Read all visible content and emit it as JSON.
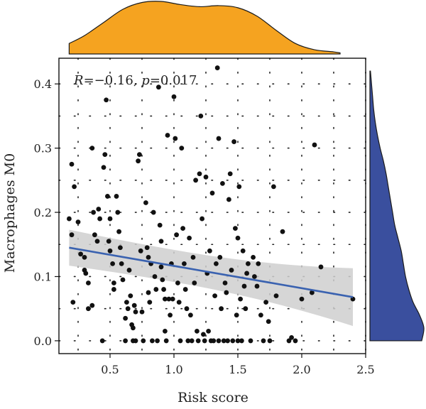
{
  "chart_data": {
    "type": "scatter",
    "xlabel": "Risk score",
    "ylabel": "Macrophages M0",
    "xlim": [
      0.1,
      2.5
    ],
    "ylim": [
      -0.02,
      0.44
    ],
    "x_ticks": [
      0.5,
      1.0,
      1.5,
      2.0,
      2.5
    ],
    "x_tick_labels": [
      "0.5",
      "1.0",
      "1.5",
      "2.0",
      "2.5"
    ],
    "y_ticks": [
      0.0,
      0.1,
      0.2,
      0.3,
      0.4
    ],
    "y_tick_labels": [
      "0.0",
      "0.1",
      "0.2",
      "0.3",
      "0.4"
    ],
    "grid": "dotted",
    "annotation": {
      "r_label": "R",
      "r_value": "−0.16",
      "p_label": "p",
      "p_value": "0.017"
    },
    "regression": {
      "x_start": 0.18,
      "y_start": 0.145,
      "x_end": 2.4,
      "y_end": 0.068,
      "ci_start": [
        0.12,
        0.17
      ],
      "ci_end": [
        0.025,
        0.115
      ]
    },
    "colors": {
      "points": "#111111",
      "fit_line": "#3a62b0",
      "ci_band": "#cfcfcf",
      "top_density": "#f5a320",
      "right_density": "#3a4f9e",
      "density_outline": "#1a1a1a"
    },
    "top_density": {
      "x": [
        0.18,
        0.3,
        0.45,
        0.6,
        0.75,
        0.9,
        1.05,
        1.2,
        1.35,
        1.5,
        1.65,
        1.8,
        1.95,
        2.1,
        2.25,
        2.4
      ],
      "density": [
        0.2,
        0.35,
        0.6,
        0.85,
        0.98,
        1.0,
        0.94,
        0.9,
        0.92,
        0.88,
        0.72,
        0.45,
        0.2,
        0.08,
        0.04,
        0.02
      ]
    },
    "right_density": {
      "y": [
        0.0,
        0.02,
        0.04,
        0.06,
        0.08,
        0.1,
        0.12,
        0.14,
        0.16,
        0.18,
        0.2,
        0.22,
        0.24,
        0.26,
        0.28,
        0.3,
        0.32,
        0.34,
        0.36,
        0.38,
        0.4,
        0.42
      ],
      "density": [
        0.96,
        1.0,
        0.92,
        0.8,
        0.72,
        0.66,
        0.62,
        0.58,
        0.52,
        0.46,
        0.42,
        0.38,
        0.34,
        0.3,
        0.25,
        0.19,
        0.14,
        0.1,
        0.07,
        0.05,
        0.03,
        0.01
      ]
    },
    "points": [
      [
        0.2,
        0.275
      ],
      [
        0.22,
        0.24
      ],
      [
        0.18,
        0.19
      ],
      [
        0.2,
        0.165
      ],
      [
        0.21,
        0.06
      ],
      [
        0.25,
        0.185
      ],
      [
        0.27,
        0.135
      ],
      [
        0.3,
        0.11
      ],
      [
        0.31,
        0.105
      ],
      [
        0.3,
        0.13
      ],
      [
        0.33,
        0.09
      ],
      [
        0.36,
        0.055
      ],
      [
        0.33,
        0.05
      ],
      [
        0.36,
        0.3
      ],
      [
        0.37,
        0.2
      ],
      [
        0.38,
        0.165
      ],
      [
        0.4,
        0.155
      ],
      [
        0.41,
        0.205
      ],
      [
        0.42,
        0.19
      ],
      [
        0.44,
        0.0
      ],
      [
        0.45,
        0.27
      ],
      [
        0.46,
        0.29
      ],
      [
        0.47,
        0.375
      ],
      [
        0.48,
        0.225
      ],
      [
        0.49,
        0.155
      ],
      [
        0.5,
        0.14
      ],
      [
        0.5,
        0.19
      ],
      [
        0.52,
        0.12
      ],
      [
        0.53,
        0.09
      ],
      [
        0.53,
        0.08
      ],
      [
        0.55,
        0.225
      ],
      [
        0.56,
        0.2
      ],
      [
        0.57,
        0.17
      ],
      [
        0.58,
        0.145
      ],
      [
        0.59,
        0.12
      ],
      [
        0.6,
        0.095
      ],
      [
        0.62,
        0.0
      ],
      [
        0.62,
        0.035
      ],
      [
        0.63,
        0.06
      ],
      [
        0.64,
        0.05
      ],
      [
        0.65,
        0.11
      ],
      [
        0.66,
        0.07
      ],
      [
        0.67,
        0.025
      ],
      [
        0.68,
        0.0
      ],
      [
        0.68,
        0.02
      ],
      [
        0.69,
        0.055
      ],
      [
        0.7,
        0.045
      ],
      [
        0.7,
        0.0
      ],
      [
        0.72,
        0.28
      ],
      [
        0.73,
        0.29
      ],
      [
        0.74,
        0.14
      ],
      [
        0.75,
        0.045
      ],
      [
        0.76,
        0.0
      ],
      [
        0.78,
        0.215
      ],
      [
        0.79,
        0.145
      ],
      [
        0.8,
        0.13
      ],
      [
        0.8,
        0.075
      ],
      [
        0.81,
        0.06
      ],
      [
        0.82,
        0.12
      ],
      [
        0.83,
        0.0
      ],
      [
        0.84,
        0.2
      ],
      [
        0.85,
        0.1
      ],
      [
        0.86,
        0.08
      ],
      [
        0.87,
        0.0
      ],
      [
        0.88,
        0.395
      ],
      [
        0.89,
        0.18
      ],
      [
        0.9,
        0.155
      ],
      [
        0.9,
        0.115
      ],
      [
        0.91,
        0.095
      ],
      [
        0.92,
        0.08
      ],
      [
        0.93,
        0.065
      ],
      [
        0.93,
        0.015
      ],
      [
        0.94,
        0.0
      ],
      [
        0.95,
        0.32
      ],
      [
        0.96,
        0.065
      ],
      [
        0.97,
        0.04
      ],
      [
        0.98,
        0.12
      ],
      [
        0.99,
        0.065
      ],
      [
        1.0,
        0.38
      ],
      [
        1.01,
        0.315
      ],
      [
        1.02,
        0.165
      ],
      [
        1.03,
        0.09
      ],
      [
        1.04,
        0.06
      ],
      [
        1.05,
        0.0
      ],
      [
        1.06,
        0.3
      ],
      [
        1.07,
        0.175
      ],
      [
        1.08,
        0.12
      ],
      [
        1.09,
        0.08
      ],
      [
        1.1,
        0.05
      ],
      [
        1.11,
        0.0
      ],
      [
        1.12,
        0.16
      ],
      [
        1.13,
        0.04
      ],
      [
        1.14,
        0.0
      ],
      [
        1.15,
        0.13
      ],
      [
        1.16,
        0.09
      ],
      [
        1.17,
        0.25
      ],
      [
        1.18,
        0.015
      ],
      [
        1.19,
        0.0
      ],
      [
        1.2,
        0.26
      ],
      [
        1.21,
        0.35
      ],
      [
        1.22,
        0.19
      ],
      [
        1.23,
        0.01
      ],
      [
        1.24,
        0.0
      ],
      [
        1.25,
        0.255
      ],
      [
        1.26,
        0.105
      ],
      [
        1.27,
        0.015
      ],
      [
        1.28,
        0.14
      ],
      [
        1.29,
        0.0
      ],
      [
        1.3,
        0.23
      ],
      [
        1.31,
        0.0
      ],
      [
        1.32,
        0.07
      ],
      [
        1.33,
        0.12
      ],
      [
        1.34,
        0.425
      ],
      [
        1.35,
        0.315
      ],
      [
        1.35,
        0.0
      ],
      [
        1.36,
        0.13
      ],
      [
        1.37,
        0.05
      ],
      [
        1.38,
        0.245
      ],
      [
        1.39,
        0.0
      ],
      [
        1.4,
        0.09
      ],
      [
        1.41,
        0.075
      ],
      [
        1.42,
        0.0
      ],
      [
        1.43,
        0.22
      ],
      [
        1.44,
        0.26
      ],
      [
        1.45,
        0.11
      ],
      [
        1.46,
        0.0
      ],
      [
        1.47,
        0.31
      ],
      [
        1.48,
        0.175
      ],
      [
        1.49,
        0.04
      ],
      [
        1.5,
        0.0
      ],
      [
        1.5,
        0.16
      ],
      [
        1.51,
        0.24
      ],
      [
        1.52,
        0.065
      ],
      [
        1.53,
        0.0
      ],
      [
        1.54,
        0.14
      ],
      [
        1.55,
        0.085
      ],
      [
        1.56,
        0.05
      ],
      [
        1.57,
        0.105
      ],
      [
        1.58,
        0.12
      ],
      [
        1.6,
        0.0
      ],
      [
        1.62,
        0.13
      ],
      [
        1.63,
        0.1
      ],
      [
        1.65,
        0.085
      ],
      [
        1.66,
        0.12
      ],
      [
        1.68,
        0.04
      ],
      [
        1.7,
        0.0
      ],
      [
        1.72,
        0.06
      ],
      [
        1.74,
        0.03
      ],
      [
        1.75,
        0.0
      ],
      [
        1.78,
        0.24
      ],
      [
        1.8,
        0.07
      ],
      [
        1.85,
        0.17
      ],
      [
        1.9,
        0.0
      ],
      [
        1.92,
        0.005
      ],
      [
        1.95,
        0.0
      ],
      [
        2.0,
        0.065
      ],
      [
        2.08,
        0.075
      ],
      [
        2.1,
        0.305
      ],
      [
        2.15,
        0.115
      ],
      [
        2.4,
        0.065
      ]
    ]
  }
}
